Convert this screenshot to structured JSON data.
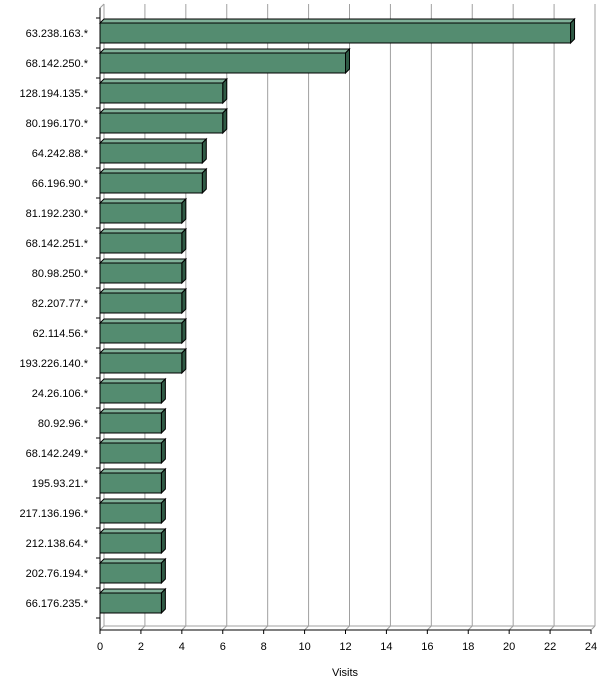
{
  "chart_data": {
    "type": "bar",
    "orientation": "horizontal",
    "style": "3d",
    "categories": [
      "63.238.163.*",
      "68.142.250.*",
      "128.194.135.*",
      "80.196.170.*",
      "64.242.88.*",
      "66.196.90.*",
      "81.192.230.*",
      "68.142.251.*",
      "80.98.250.*",
      "82.207.77.*",
      "62.114.56.*",
      "193.226.140.*",
      "24.26.106.*",
      "80.92.96.*",
      "68.142.249.*",
      "195.93.21.*",
      "217.136.196.*",
      "212.138.64.*",
      "202.76.194.*",
      "66.176.235.*"
    ],
    "values": [
      23,
      12,
      6,
      6,
      5,
      5,
      4,
      4,
      4,
      4,
      4,
      4,
      3,
      3,
      3,
      3,
      3,
      3,
      3,
      3
    ],
    "xlabel": "Visits",
    "ylabel": "",
    "xlim": [
      0,
      24
    ],
    "xticks": [
      0,
      2,
      4,
      6,
      8,
      10,
      12,
      14,
      16,
      18,
      20,
      22,
      24
    ],
    "grid": true,
    "legend": "none",
    "colors": {
      "bar_front": "#548c70",
      "bar_top": "#7fb098",
      "bar_side": "#2f5a45",
      "bar_stroke": "#000000",
      "grid": "#a0a0a0",
      "axis": "#000000"
    }
  }
}
